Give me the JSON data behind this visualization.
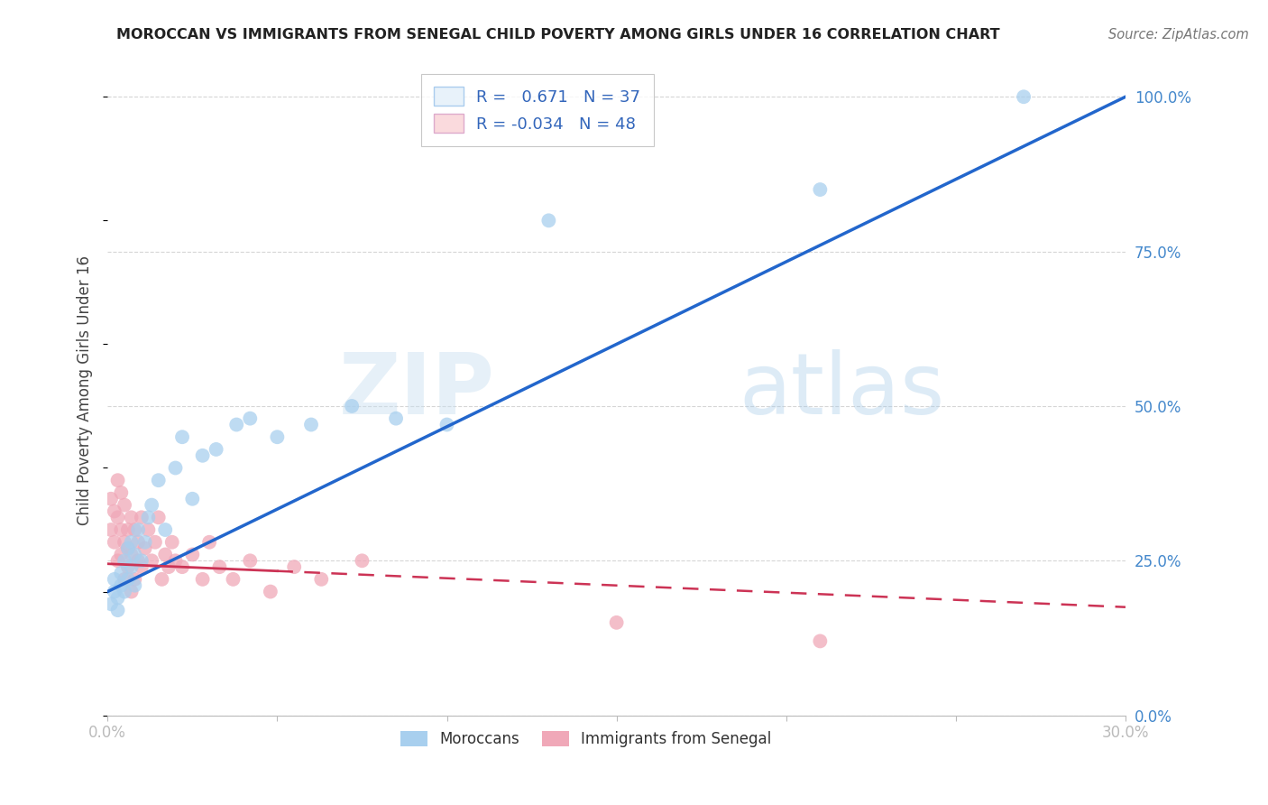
{
  "title": "MOROCCAN VS IMMIGRANTS FROM SENEGAL CHILD POVERTY AMONG GIRLS UNDER 16 CORRELATION CHART",
  "source": "Source: ZipAtlas.com",
  "ylabel": "Child Poverty Among Girls Under 16",
  "xlim": [
    0.0,
    0.3
  ],
  "ylim": [
    0.0,
    1.05
  ],
  "xticks": [
    0.0,
    0.05,
    0.1,
    0.15,
    0.2,
    0.25,
    0.3
  ],
  "xtick_labels": [
    "0.0%",
    "",
    "",
    "",
    "",
    "",
    "30.0%"
  ],
  "ytick_labels_right": [
    "0.0%",
    "25.0%",
    "50.0%",
    "75.0%",
    "100.0%"
  ],
  "ytick_vals_right": [
    0.0,
    0.25,
    0.5,
    0.75,
    1.0
  ],
  "R_moroccan": 0.671,
  "N_moroccan": 37,
  "R_senegal": -0.034,
  "N_senegal": 48,
  "blue_color": "#A8CFEE",
  "pink_color": "#F0A8B8",
  "blue_line_color": "#2266CC",
  "pink_line_color": "#CC3355",
  "grid_color": "#CCCCCC",
  "background_color": "#FFFFFF",
  "watermark_zip": "ZIP",
  "watermark_atlas": "atlas",
  "legend_box_color": "#E8F2FA",
  "legend_pink_box": "#FADADD",
  "blue_line_y0": 0.2,
  "blue_line_y1": 1.0,
  "pink_line_y0": 0.245,
  "pink_line_y1": 0.175,
  "moroccan_x": [
    0.001,
    0.002,
    0.002,
    0.003,
    0.003,
    0.004,
    0.004,
    0.005,
    0.005,
    0.006,
    0.006,
    0.007,
    0.007,
    0.008,
    0.008,
    0.009,
    0.01,
    0.011,
    0.012,
    0.013,
    0.015,
    0.017,
    0.02,
    0.022,
    0.025,
    0.028,
    0.032,
    0.038,
    0.042,
    0.05,
    0.06,
    0.072,
    0.085,
    0.1,
    0.13,
    0.21,
    0.27
  ],
  "moroccan_y": [
    0.18,
    0.2,
    0.22,
    0.19,
    0.17,
    0.21,
    0.23,
    0.2,
    0.25,
    0.22,
    0.27,
    0.24,
    0.28,
    0.21,
    0.26,
    0.3,
    0.25,
    0.28,
    0.32,
    0.34,
    0.38,
    0.3,
    0.4,
    0.45,
    0.35,
    0.42,
    0.43,
    0.47,
    0.48,
    0.45,
    0.47,
    0.5,
    0.48,
    0.47,
    0.8,
    0.85,
    1.0
  ],
  "senegal_x": [
    0.001,
    0.001,
    0.002,
    0.002,
    0.003,
    0.003,
    0.003,
    0.004,
    0.004,
    0.004,
    0.005,
    0.005,
    0.005,
    0.006,
    0.006,
    0.006,
    0.007,
    0.007,
    0.007,
    0.008,
    0.008,
    0.009,
    0.009,
    0.01,
    0.01,
    0.011,
    0.012,
    0.013,
    0.014,
    0.015,
    0.016,
    0.017,
    0.018,
    0.019,
    0.02,
    0.022,
    0.025,
    0.028,
    0.03,
    0.033,
    0.037,
    0.042,
    0.048,
    0.055,
    0.063,
    0.075,
    0.15,
    0.21
  ],
  "senegal_y": [
    0.3,
    0.35,
    0.28,
    0.33,
    0.25,
    0.32,
    0.38,
    0.26,
    0.3,
    0.36,
    0.22,
    0.28,
    0.34,
    0.3,
    0.24,
    0.27,
    0.32,
    0.2,
    0.26,
    0.3,
    0.22,
    0.25,
    0.28,
    0.32,
    0.24,
    0.27,
    0.3,
    0.25,
    0.28,
    0.32,
    0.22,
    0.26,
    0.24,
    0.28,
    0.25,
    0.24,
    0.26,
    0.22,
    0.28,
    0.24,
    0.22,
    0.25,
    0.2,
    0.24,
    0.22,
    0.25,
    0.15,
    0.12
  ]
}
